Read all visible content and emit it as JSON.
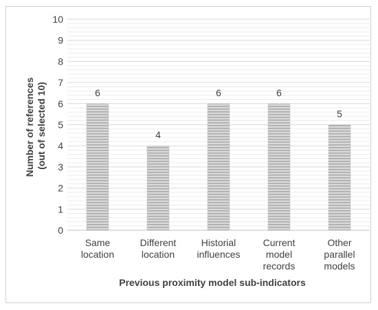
{
  "chart_data": {
    "type": "bar",
    "categories": [
      [
        "Same",
        "location"
      ],
      [
        "Different",
        "location"
      ],
      [
        "Historial",
        "influences"
      ],
      [
        "Current",
        "model",
        "records"
      ],
      [
        "Other",
        "parallel",
        "models"
      ]
    ],
    "values": [
      6,
      4,
      6,
      6,
      5
    ],
    "data_labels": [
      "6",
      "4",
      "6",
      "6",
      "5"
    ],
    "xlabel": "Previous proximity model sub-indicators",
    "ylabel": [
      "Number of references",
      "(out of selected 10)"
    ],
    "ylim": [
      0,
      10
    ],
    "yticks": [
      "0",
      "1",
      "2",
      "3",
      "4",
      "5",
      "6",
      "7",
      "8",
      "9",
      "10"
    ],
    "grid": true,
    "legend": "none",
    "colors": {
      "bar_fill": "#d9d9d9",
      "bar_stripe": "#a6a6a6",
      "grid": "#d9d9d9",
      "axis": "#bfbfbf",
      "text": "#404040"
    }
  }
}
